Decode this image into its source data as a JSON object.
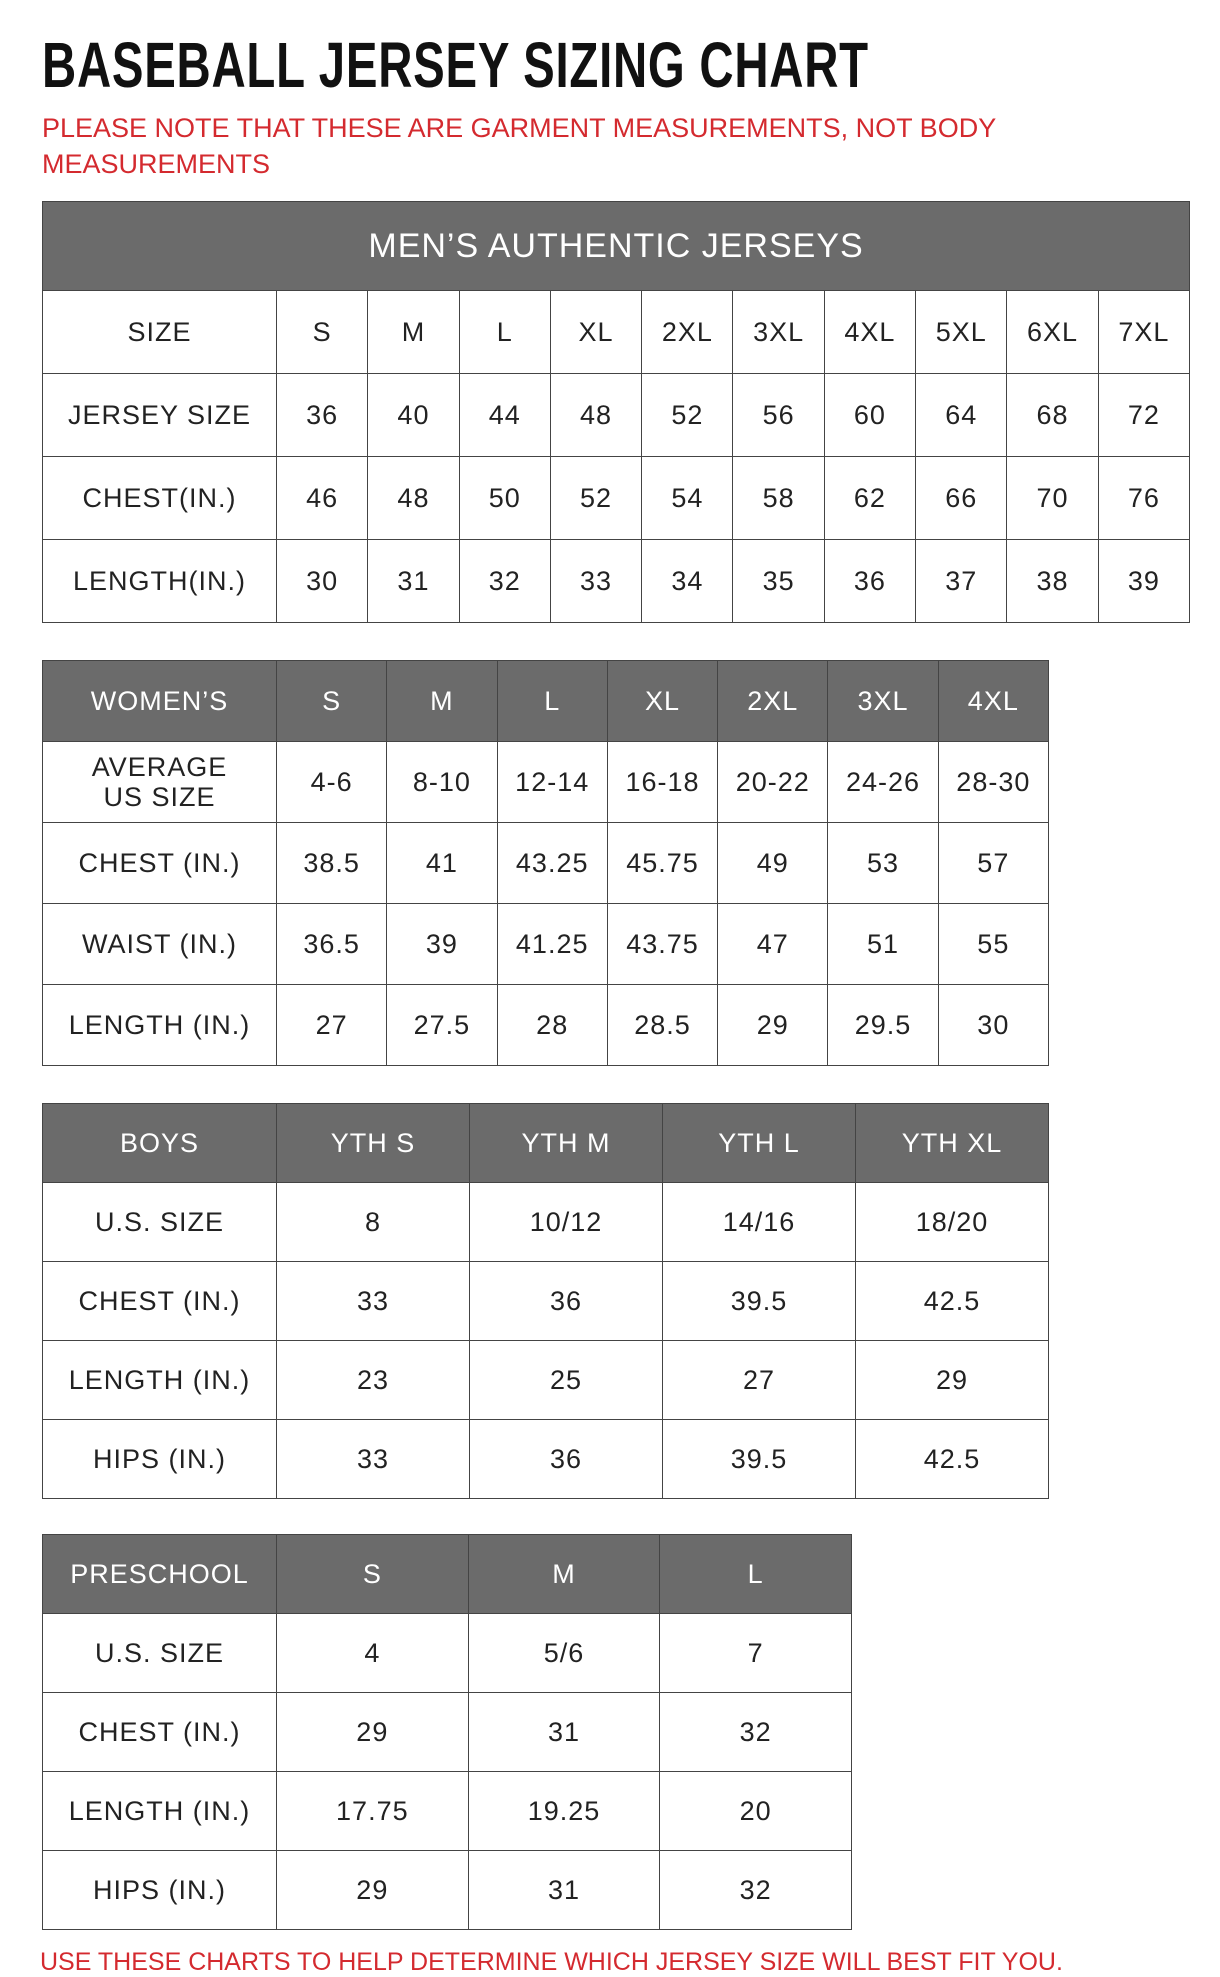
{
  "title": "BASEBALL JERSEY SIZING CHART",
  "note": "PLEASE NOTE THAT THESE ARE GARMENT MEASUREMENTS, NOT BODY MEASUREMENTS",
  "men": {
    "title": "MEN’S AUTHENTIC JERSEYS",
    "rows": [
      [
        "SIZE",
        "S",
        "M",
        "L",
        "XL",
        "2XL",
        "3XL",
        "4XL",
        "5XL",
        "6XL",
        "7XL"
      ],
      [
        "JERSEY SIZE",
        "36",
        "40",
        "44",
        "48",
        "52",
        "56",
        "60",
        "64",
        "68",
        "72"
      ],
      [
        "CHEST(IN.)",
        "46",
        "48",
        "50",
        "52",
        "54",
        "58",
        "62",
        "66",
        "70",
        "76"
      ],
      [
        "LENGTH(IN.)",
        "30",
        "31",
        "32",
        "33",
        "34",
        "35",
        "36",
        "37",
        "38",
        "39"
      ]
    ]
  },
  "women": {
    "header": [
      "WOMEN’S",
      "S",
      "M",
      "L",
      "XL",
      "2XL",
      "3XL",
      "4XL"
    ],
    "rows": [
      [
        "AVERAGE\nUS SIZE",
        "4-6",
        "8-10",
        "12-14",
        "16-18",
        "20-22",
        "24-26",
        "28-30"
      ],
      [
        "CHEST (IN.)",
        "38.5",
        "41",
        "43.25",
        "45.75",
        "49",
        "53",
        "57"
      ],
      [
        "WAIST (IN.)",
        "36.5",
        "39",
        "41.25",
        "43.75",
        "47",
        "51",
        "55"
      ],
      [
        "LENGTH (IN.)",
        "27",
        "27.5",
        "28",
        "28.5",
        "29",
        "29.5",
        "30"
      ]
    ]
  },
  "boys": {
    "header": [
      "BOYS",
      "YTH S",
      "YTH M",
      "YTH L",
      "YTH XL"
    ],
    "rows": [
      [
        "U.S. SIZE",
        "8",
        "10/12",
        "14/16",
        "18/20"
      ],
      [
        "CHEST (IN.)",
        "33",
        "36",
        "39.5",
        "42.5"
      ],
      [
        "LENGTH (IN.)",
        "23",
        "25",
        "27",
        "29"
      ],
      [
        "HIPS (IN.)",
        "33",
        "36",
        "39.5",
        "42.5"
      ]
    ]
  },
  "preschool": {
    "header": [
      "PRESCHOOL",
      "S",
      "M",
      "L"
    ],
    "rows": [
      [
        "U.S. SIZE",
        "4",
        "5/6",
        "7"
      ],
      [
        "CHEST (IN.)",
        "29",
        "31",
        "32"
      ],
      [
        "LENGTH (IN.)",
        "17.75",
        "19.25",
        "20"
      ],
      [
        "HIPS (IN.)",
        "29",
        "31",
        "32"
      ]
    ]
  },
  "footer": "USE THESE CHARTS TO HELP DETERMINE WHICH JERSEY SIZE WILL BEST FIT YOU."
}
